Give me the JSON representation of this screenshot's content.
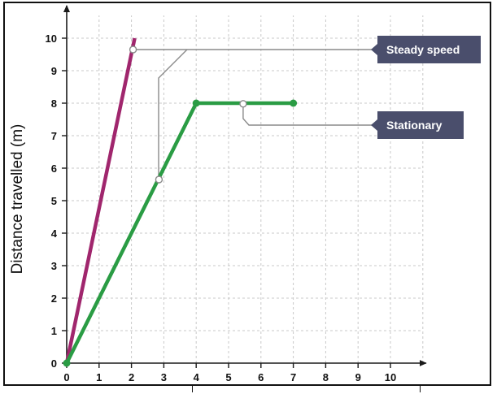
{
  "chart_data": {
    "type": "line",
    "title": "",
    "xlabel": "",
    "ylabel": "Distance travelled (m)",
    "xlim": [
      0,
      10
    ],
    "ylim": [
      0,
      10
    ],
    "x_ticks": [
      "0",
      "1",
      "2",
      "3",
      "4",
      "5",
      "6",
      "7",
      "8",
      "9",
      "10"
    ],
    "y_ticks": [
      "0",
      "1",
      "2",
      "3",
      "4",
      "5",
      "6",
      "7",
      "8",
      "9",
      "10"
    ],
    "grid": true,
    "series": [
      {
        "color": "#a0266d",
        "points": [
          [
            0,
            0
          ],
          [
            2.1,
            10
          ]
        ]
      },
      {
        "color": "#2a9c44",
        "points": [
          [
            0,
            0
          ],
          [
            4,
            8
          ],
          [
            7,
            8
          ]
        ],
        "markers": [
          [
            4,
            8
          ],
          [
            7,
            8
          ]
        ]
      }
    ],
    "annotations": [
      {
        "text": "Steady speed",
        "targets": [
          [
            2.05,
            9.65
          ],
          [
            2.85,
            5.65
          ]
        ]
      },
      {
        "text": "Stationary",
        "targets": [
          [
            5.45,
            7.98
          ]
        ]
      }
    ],
    "colors": {
      "callout_fill": "#4a4e6c",
      "grid": "#c9c9c9",
      "axis": "#1a1a1a",
      "leader": "#8a8a8a"
    }
  }
}
